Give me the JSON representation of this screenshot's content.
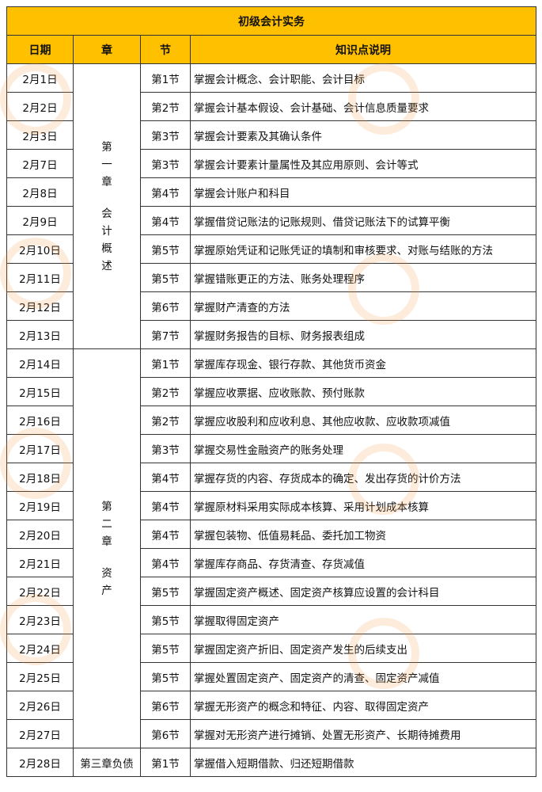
{
  "title": "初级会计实务",
  "headers": [
    "日期",
    "章",
    "节",
    "知识点说明"
  ],
  "chapters": [
    {
      "line1": "第一章",
      "line2": "会计概述",
      "rows": 10
    },
    {
      "line1": "第二章",
      "line2": "资产",
      "rows": 14
    },
    {
      "line1": "第三章负债",
      "line2": "",
      "rows": 1
    }
  ],
  "rows": [
    {
      "date": "2月1日",
      "section": "第1节",
      "desc": "掌握会计概念、会计职能、会计目标"
    },
    {
      "date": "2月2日",
      "section": "第2节",
      "desc": "掌握会计基本假设、会计基础、会计信息质量要求"
    },
    {
      "date": "2月3日",
      "section": "第3节",
      "desc": "掌握会计要素及其确认条件"
    },
    {
      "date": "2月7日",
      "section": "第3节",
      "desc": "掌握会计要素计量属性及其应用原则、会计等式"
    },
    {
      "date": "2月8日",
      "section": "第4节",
      "desc": "掌握会计账户和科目"
    },
    {
      "date": "2月9日",
      "section": "第4节",
      "desc": "掌握借贷记账法的记账规则、借贷记账法下的试算平衡"
    },
    {
      "date": "2月10日",
      "section": "第5节",
      "desc": "掌握原始凭证和记账凭证的填制和审核要求、对账与结账的方法"
    },
    {
      "date": "2月11日",
      "section": "第5节",
      "desc": "掌握错账更正的方法、账务处理程序"
    },
    {
      "date": "2月12日",
      "section": "第6节",
      "desc": "掌握财产清查的方法"
    },
    {
      "date": "2月13日",
      "section": "第7节",
      "desc": "掌握财务报告的目标、财务报表组成"
    },
    {
      "date": "2月14日",
      "section": "第1节",
      "desc": "掌握库存现金、银行存款、其他货币资金"
    },
    {
      "date": "2月15日",
      "section": "第2节",
      "desc": "掌握应收票据、应收账款、预付账款"
    },
    {
      "date": "2月16日",
      "section": "第2节",
      "desc": "掌握应收股利和应收利息、其他应收款、应收款项减值"
    },
    {
      "date": "2月17日",
      "section": "第3节",
      "desc": "掌握交易性金融资产的账务处理"
    },
    {
      "date": "2月18日",
      "section": "第4节",
      "desc": "掌握存货的内容、存货成本的确定、发出存货的计价方法"
    },
    {
      "date": "2月19日",
      "section": "第4节",
      "desc": "掌握原材料采用实际成本核算、采用计划成本核算"
    },
    {
      "date": "2月20日",
      "section": "第4节",
      "desc": "掌握包装物、低值易耗品、委托加工物资"
    },
    {
      "date": "2月21日",
      "section": "第4节",
      "desc": "掌握库存商品、存货清查、存货减值"
    },
    {
      "date": "2月22日",
      "section": "第5节",
      "desc": "掌握固定资产概述、固定资产核算应设置的会计科目"
    },
    {
      "date": "2月23日",
      "section": "第5节",
      "desc": "掌握取得固定资产"
    },
    {
      "date": "2月24日",
      "section": "第5节",
      "desc": "掌握固定资产折旧、固定资产发生的后续支出"
    },
    {
      "date": "2月25日",
      "section": "第5节",
      "desc": "掌握处置固定资产、固定资产的清查、固定资产减值"
    },
    {
      "date": "2月26日",
      "section": "第6节",
      "desc": "掌握无形资产的概念和特征、内容、取得固定资产"
    },
    {
      "date": "2月27日",
      "section": "第6节",
      "desc": "掌握对无形资产进行摊销、处置无形资产、长期待摊费用"
    },
    {
      "date": "2月28日",
      "section": "第1节",
      "desc": "掌握借入短期借款、归还短期借款"
    }
  ],
  "colors": {
    "header_bg": "#ffc000",
    "border": "#333333"
  }
}
